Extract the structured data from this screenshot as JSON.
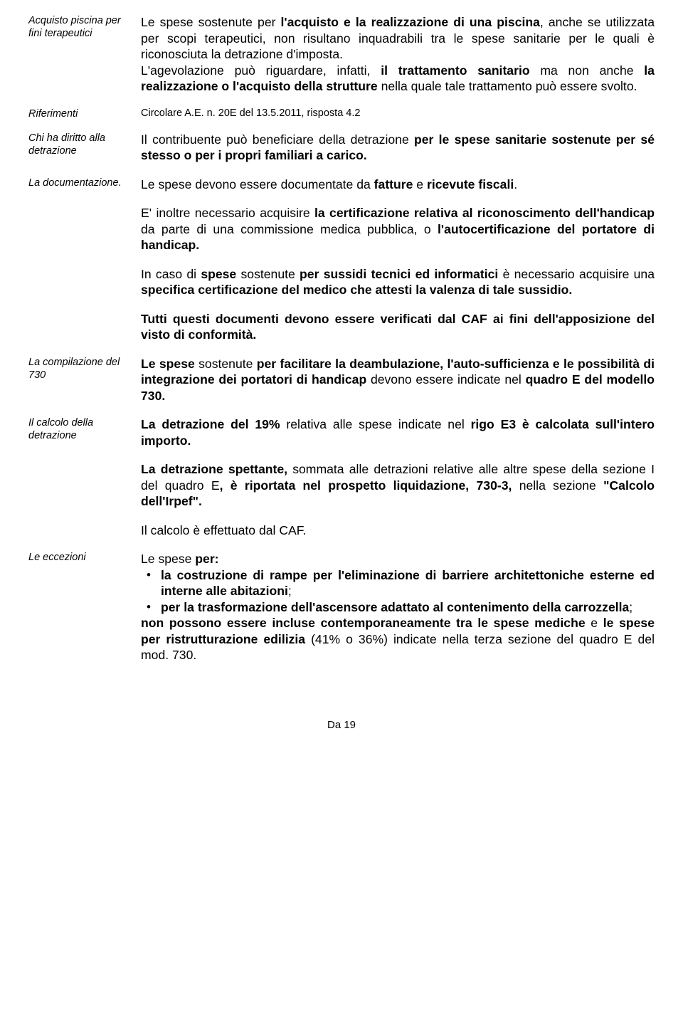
{
  "side": {
    "acquisto": "Acquisto piscina per fini terapeutici",
    "riferimenti": "Riferimenti",
    "chi": "Chi ha diritto alla detrazione",
    "doc": "La documentazione.",
    "compilazione": "La compilazione del 730",
    "calcolo": "Il calcolo della detrazione",
    "eccezioni": "Le eccezioni"
  },
  "p": {
    "a1a": "Le spese sostenute per ",
    "a1b": "l'acquisto e la realizzazione di una piscina",
    "a1c": ", anche se utilizzata per scopi terapeutici, non risultano inquadrabili tra le spese sanitarie per le quali è riconosciuta la detrazione d'imposta.",
    "a2a": "L'agevolazione può riguardare, infatti, ",
    "a2b": "il trattamento sanitario",
    "a2c": " ma non anche ",
    "a2d": "la realizzazione o l'acquisto della strutture",
    "a2e": " nella quale tale trattamento può essere svolto.",
    "rif": "Circolare A.E. n. 20E del 13.5.2011, risposta 4.2",
    "c1a": "Il contribuente può beneficiare della detrazione ",
    "c1b": "per le spese sanitarie sostenute per sé stesso o per i propri familiari a carico.",
    "d1a": "Le spese devono essere documentate da ",
    "d1b": "fatture",
    "d1c": " e ",
    "d1d": "ricevute fiscali",
    "d1e": ".",
    "d2a": "E' inoltre necessario acquisire ",
    "d2b": "la certificazione relativa al riconoscimento dell'handicap",
    "d2c": " da parte di una commissione medica pubblica, o ",
    "d2d": "l'autocertificazione del portatore di handicap.",
    "d3a": "In caso di ",
    "d3b": "spese",
    "d3c": " sostenute ",
    "d3d": "per  sussidi tecnici ed informatici",
    "d3e": " è necessario acquisire una ",
    "d3f": "specifica certificazione del medico",
    "d3g": " che attesti la valenza di tale sussidio.",
    "d4": "Tutti questi documenti devono essere verificati dal CAF ai fini dell'apposizione del visto di conformità.",
    "e1a": "Le spese",
    "e1b": " sostenute ",
    "e1c": "per facilitare la deambulazione, l'auto-sufficienza e le possibilità di integrazione dei portatori di handicap",
    "e1d": " devono essere indicate nel ",
    "e1e": "quadro E del modello 730.",
    "f1a": "La detrazione del 19%  ",
    "f1b": " relativa alle spese indicate nel ",
    "f1c": "rigo E3 è calcolata sull'intero importo.",
    "f2a": "La detrazione spettante,",
    "f2b": " sommata alle detrazioni relative alle altre spese della sezione I del quadro E",
    "f2c": ", è riportata nel prospetto liquidazione, 730-3,",
    "f2d": " nella sezione ",
    "f2e": "\"Calcolo dell'Irpef\".",
    "f3": "Il calcolo è effettuato dal CAF.",
    "g1a": "Le spese ",
    "g1b": "per:",
    "g_li1a": "la costruzione di rampe per l'eliminazione di barriere architettoniche esterne ed interne alle abitazioni",
    "g_li1b": ";",
    "g_li2a": "per la trasformazione dell'ascensore adattato al contenimento della carrozzella",
    "g_li2b": ";",
    "g2a": "non possono essere  incluse contemporaneamente tra le spese mediche",
    "g2b": " e ",
    "g2c": "le spese per ristrutturazione edilizia ",
    "g2d": " (41% o 36%) indicate nella terza sezione del quadro  E del mod. 730."
  },
  "footer": "Da 19"
}
